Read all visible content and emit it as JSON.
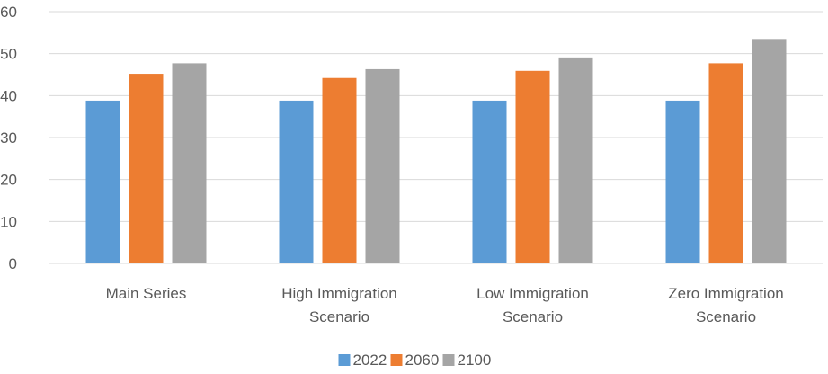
{
  "chart_data": {
    "type": "bar",
    "categories": [
      "Main Series",
      "High Immigration Scenario",
      "Low Immigration Scenario",
      "Zero Immigration Scenario"
    ],
    "category_label_lines": [
      [
        "Main Series"
      ],
      [
        "High Immigration",
        "Scenario"
      ],
      [
        "Low Immigration",
        "Scenario"
      ],
      [
        "Zero Immigration",
        "Scenario"
      ]
    ],
    "series": [
      {
        "name": "2022",
        "color": "#5B9BD5",
        "values": [
          38.8,
          38.8,
          38.8,
          38.8
        ]
      },
      {
        "name": "2060",
        "color": "#ED7D31",
        "values": [
          45.2,
          44.2,
          45.9,
          47.7
        ]
      },
      {
        "name": "2100",
        "color": "#A5A5A5",
        "values": [
          47.7,
          46.3,
          49.1,
          53.5
        ]
      }
    ],
    "ylim": [
      0,
      60
    ],
    "yticks": [
      "0",
      "10",
      "20",
      "30",
      "40",
      "50",
      "60"
    ],
    "grid": true,
    "legend_position": "bottom",
    "title": "",
    "xlabel": "",
    "ylabel": ""
  }
}
